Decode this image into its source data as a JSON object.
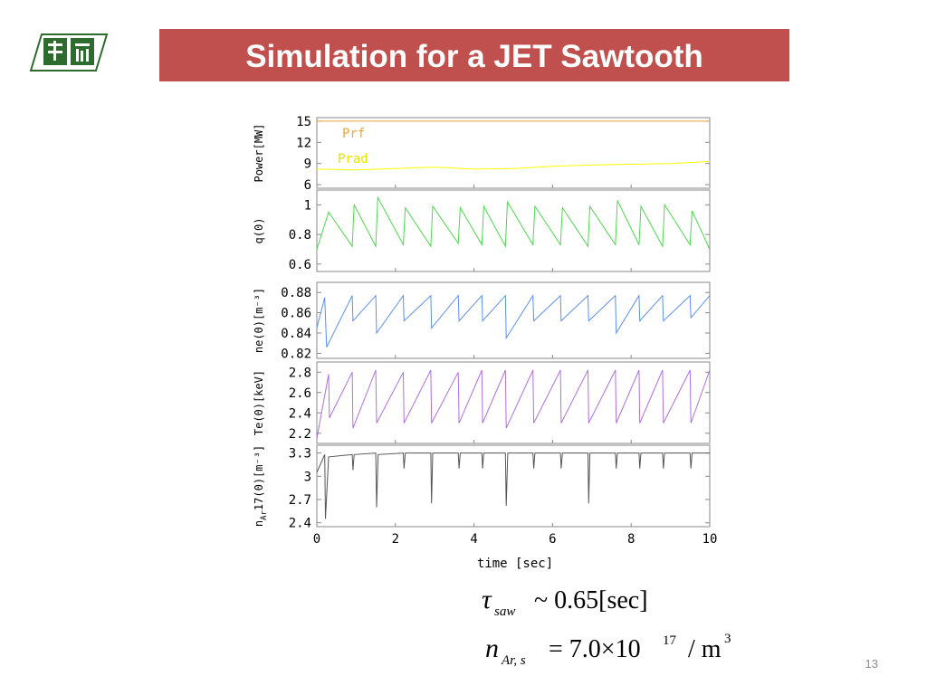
{
  "slide": {
    "title": "Simulation for a JET Sawtooth",
    "page_number": "13",
    "formula": {
      "tau_symbol": "τ",
      "tau_sub": "saw",
      "tau_rest": "~ 0.65[sec]",
      "n_symbol": "n",
      "n_sub": "Ar, s",
      "n_eq": "= 7.0×10",
      "n_exp": "17",
      "n_unit": "/ m",
      "n_unit_exp": "3"
    }
  },
  "colors": {
    "title_bg": "#c0504d",
    "prf": "#f2a33a",
    "prad": "#ffff00",
    "q0": "#4cd94c",
    "ne": "#5b8ff0",
    "te": "#b070e0",
    "nar": "#555555",
    "logo": "#2e6b2e"
  },
  "chart_data": {
    "type": "line",
    "xlabel": "time [sec]",
    "xlim": [
      0,
      10
    ],
    "x_ticks": [
      "0",
      "2",
      "4",
      "6",
      "8",
      "10"
    ],
    "panels": [
      {
        "ylabel": "Power[MW]",
        "ylim": [
          5.5,
          15.5
        ],
        "y_ticks": [
          {
            "v": 15,
            "t": "15"
          },
          {
            "v": 12,
            "t": "12"
          },
          {
            "v": 9,
            "t": "9"
          },
          {
            "v": 6,
            "t": "6"
          }
        ],
        "series": [
          {
            "name": "Prf",
            "color": "#f2a33a",
            "x": [
              0,
              10
            ],
            "y": [
              15.0,
              15.0
            ]
          },
          {
            "name": "Prad",
            "color": "#ffff00",
            "x": [
              0,
              1,
              2,
              3,
              4,
              5,
              6,
              7,
              8,
              9,
              10
            ],
            "y": [
              8.2,
              8.1,
              8.3,
              8.5,
              8.2,
              8.3,
              8.6,
              8.8,
              8.9,
              9.0,
              9.3
            ]
          }
        ]
      },
      {
        "ylabel": "q(0)",
        "ylim": [
          0.55,
          1.1
        ],
        "y_ticks": [
          {
            "v": 1,
            "t": "1"
          },
          {
            "v": 0.8,
            "t": "0.8"
          },
          {
            "v": 0.6,
            "t": "0.6"
          }
        ],
        "series": [
          {
            "color": "#4cd94c",
            "x": [
              0,
              0.3,
              0.9,
              0.95,
              1.5,
              1.55,
              2.2,
              2.25,
              2.9,
              2.95,
              3.6,
              3.65,
              4.2,
              4.25,
              4.8,
              4.85,
              5.5,
              5.55,
              6.2,
              6.25,
              6.9,
              6.95,
              7.6,
              7.65,
              8.2,
              8.25,
              8.8,
              8.85,
              9.5,
              9.55,
              10
            ],
            "y": [
              0.7,
              0.95,
              0.72,
              1.0,
              0.72,
              1.05,
              0.73,
              0.98,
              0.72,
              0.99,
              0.74,
              0.98,
              0.73,
              0.99,
              0.72,
              1.02,
              0.73,
              0.99,
              0.73,
              0.98,
              0.72,
              0.99,
              0.73,
              1.03,
              0.73,
              0.99,
              0.72,
              1.0,
              0.73,
              0.96,
              0.7
            ]
          }
        ]
      },
      {
        "ylabel": "ne(0)[m⁻³]",
        "ylim": [
          0.815,
          0.89
        ],
        "y_ticks": [
          {
            "v": 0.88,
            "t": "0.88"
          },
          {
            "v": 0.86,
            "t": "0.86"
          },
          {
            "v": 0.84,
            "t": "0.84"
          },
          {
            "v": 0.82,
            "t": "0.82"
          }
        ],
        "series": [
          {
            "color": "#5b8ff0",
            "x": [
              0,
              0.2,
              0.25,
              0.9,
              0.92,
              1.5,
              1.52,
              2.2,
              2.22,
              2.9,
              2.92,
              3.6,
              3.62,
              4.2,
              4.22,
              4.8,
              4.82,
              5.5,
              5.52,
              6.2,
              6.22,
              6.9,
              6.92,
              7.6,
              7.62,
              8.2,
              8.22,
              8.8,
              8.82,
              9.5,
              9.52,
              10
            ],
            "y": [
              0.845,
              0.875,
              0.826,
              0.877,
              0.852,
              0.877,
              0.84,
              0.877,
              0.852,
              0.877,
              0.845,
              0.877,
              0.852,
              0.877,
              0.852,
              0.877,
              0.835,
              0.877,
              0.852,
              0.877,
              0.852,
              0.877,
              0.852,
              0.877,
              0.84,
              0.877,
              0.852,
              0.877,
              0.852,
              0.877,
              0.855,
              0.877
            ]
          }
        ]
      },
      {
        "ylabel": "Te(0)[keV]",
        "ylim": [
          2.1,
          2.9
        ],
        "y_ticks": [
          {
            "v": 2.8,
            "t": "2.8"
          },
          {
            "v": 2.6,
            "t": "2.6"
          },
          {
            "v": 2.4,
            "t": "2.4"
          },
          {
            "v": 2.2,
            "t": "2.2"
          }
        ],
        "series": [
          {
            "color": "#b070e0",
            "x": [
              0,
              0.3,
              0.32,
              0.9,
              0.92,
              1.5,
              1.52,
              2.2,
              2.22,
              2.9,
              2.92,
              3.6,
              3.62,
              4.2,
              4.22,
              4.8,
              4.82,
              5.5,
              5.52,
              6.2,
              6.22,
              6.9,
              6.92,
              7.6,
              7.62,
              8.2,
              8.22,
              8.8,
              8.82,
              9.5,
              9.52,
              10
            ],
            "y": [
              2.15,
              2.78,
              2.35,
              2.8,
              2.25,
              2.82,
              2.3,
              2.8,
              2.3,
              2.82,
              2.3,
              2.8,
              2.3,
              2.82,
              2.3,
              2.82,
              2.25,
              2.82,
              2.3,
              2.82,
              2.3,
              2.82,
              2.3,
              2.82,
              2.3,
              2.82,
              2.3,
              2.82,
              2.3,
              2.82,
              2.3,
              2.82
            ]
          }
        ]
      },
      {
        "ylabel": "n",
        "ylabel_sub": "Ar",
        "ylabel_rest": "17(0)[m⁻³]",
        "ylim": [
          2.35,
          3.4
        ],
        "y_ticks": [
          {
            "v": 3.3,
            "t": "3.3"
          },
          {
            "v": 3,
            "t": "3"
          },
          {
            "v": 2.7,
            "t": "2.7"
          },
          {
            "v": 2.4,
            "t": "2.4"
          }
        ],
        "series": [
          {
            "color": "#555555",
            "x": [
              0,
              0.2,
              0.22,
              0.3,
              0.9,
              0.92,
              0.95,
              1.5,
              1.52,
              1.56,
              2.2,
              2.22,
              2.25,
              2.9,
              2.92,
              2.95,
              3.6,
              3.62,
              3.65,
              4.2,
              4.22,
              4.25,
              4.8,
              4.82,
              4.86,
              5.5,
              5.52,
              5.55,
              6.2,
              6.22,
              6.25,
              6.9,
              6.92,
              6.95,
              7.6,
              7.62,
              7.65,
              8.2,
              8.22,
              8.25,
              8.8,
              8.82,
              8.85,
              9.5,
              9.52,
              9.55,
              10
            ],
            "y": [
              3.05,
              3.28,
              2.45,
              3.25,
              3.28,
              3.08,
              3.28,
              3.3,
              2.6,
              3.28,
              3.3,
              3.1,
              3.3,
              3.3,
              2.65,
              3.3,
              3.3,
              3.1,
              3.3,
              3.3,
              3.1,
              3.3,
              3.3,
              2.62,
              3.3,
              3.3,
              3.1,
              3.3,
              3.3,
              3.1,
              3.3,
              3.3,
              2.65,
              3.3,
              3.3,
              3.1,
              3.3,
              3.3,
              3.1,
              3.3,
              3.3,
              3.1,
              3.3,
              3.3,
              3.1,
              3.3,
              3.3
            ]
          }
        ]
      }
    ]
  }
}
